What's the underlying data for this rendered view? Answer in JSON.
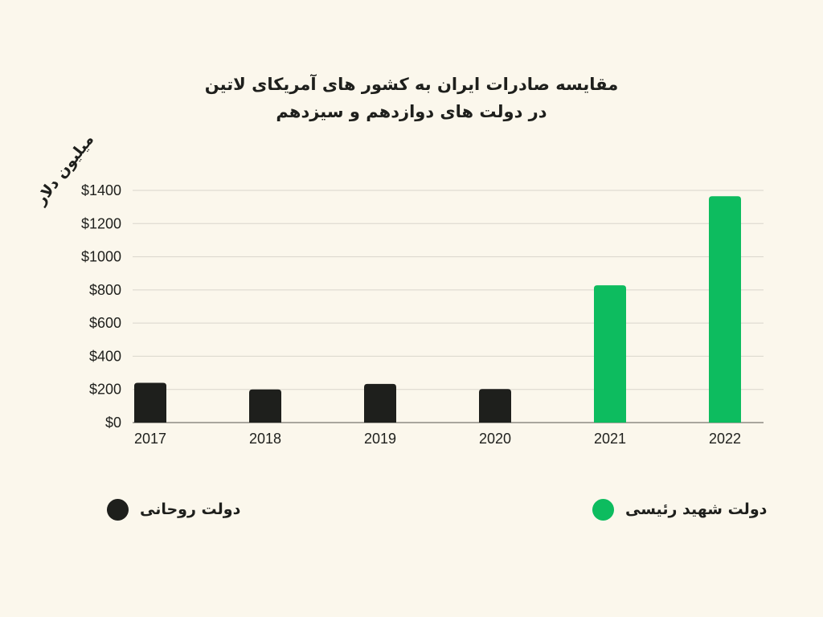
{
  "chart_data": {
    "type": "bar",
    "title": [
      "مقایسه صادرات ایران به کشور های آمریکای لاتین",
      "در دولت های دوازدهم و سیزدهم"
    ],
    "ylabel": "میلیون دلار",
    "xlabel": "",
    "categories": [
      "2017",
      "2018",
      "2019",
      "2020",
      "2021",
      "2022"
    ],
    "values": [
      240,
      200,
      233,
      202,
      828,
      1365
    ],
    "group": [
      "rouhani",
      "rouhani",
      "rouhani",
      "rouhani",
      "raisi",
      "raisi"
    ],
    "ylim": [
      0,
      1400
    ],
    "yticks": [
      0,
      200,
      400,
      600,
      800,
      1000,
      1200,
      1400
    ],
    "ytick_labels": [
      "$0",
      "$200",
      "$400",
      "$600",
      "$800",
      "$1000",
      "$1200",
      "$1400"
    ],
    "grid": true,
    "legend": [
      {
        "key": "rouhani",
        "label": "دولت روحانی",
        "color": "#1e1f1c"
      },
      {
        "key": "raisi",
        "label": "دولت شهید رئیسی",
        "color": "#0dbc5f"
      }
    ]
  },
  "colors": {
    "background": "#fbf7ec",
    "rouhani": "#1e1f1c",
    "raisi": "#0dbc5f",
    "grid": "#d9d6cc"
  }
}
